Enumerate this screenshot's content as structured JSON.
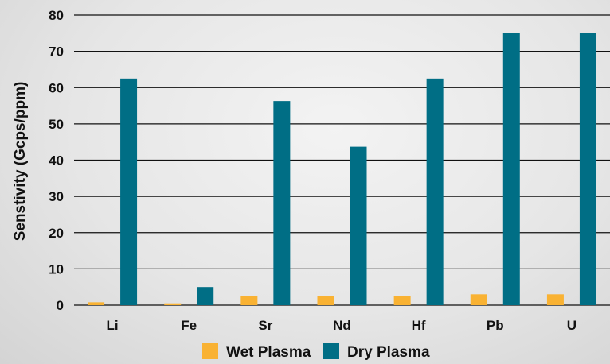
{
  "chart_data": {
    "type": "bar",
    "categories": [
      "Li",
      "Fe",
      "Sr",
      "Nd",
      "Hf",
      "Pb",
      "U"
    ],
    "series": [
      {
        "name": "Wet Plasma",
        "color": "#f9b233",
        "values": [
          0.8,
          0.5,
          2.5,
          2.5,
          2.5,
          3.0,
          3.0
        ]
      },
      {
        "name": "Dry Plasma",
        "color": "#006e85",
        "values": [
          62.5,
          5.0,
          56.3,
          43.7,
          62.5,
          75.0,
          75.0
        ]
      }
    ],
    "title": "",
    "xlabel": "",
    "ylabel": "Senstivity (Gcps/ppm)",
    "ylim": [
      0,
      80
    ],
    "yticks": [
      0,
      10,
      20,
      30,
      40,
      50,
      60,
      70,
      80
    ],
    "grid": "horizontal",
    "legend_position": "bottom"
  }
}
